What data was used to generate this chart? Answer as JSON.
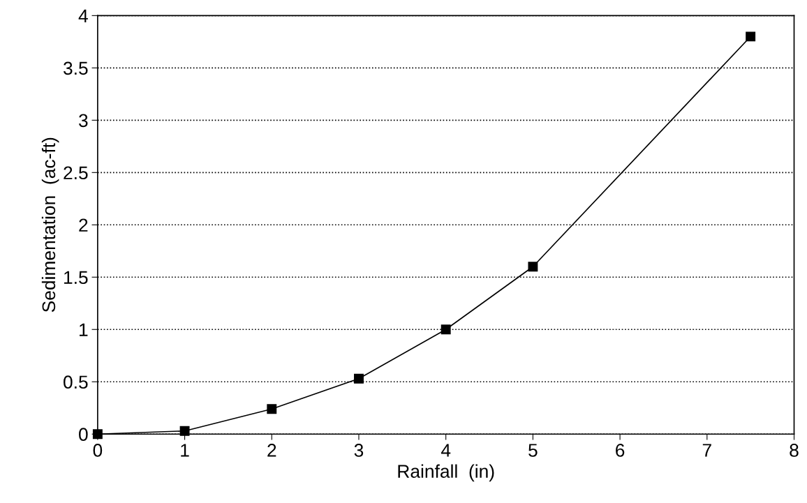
{
  "chart_data": {
    "type": "line",
    "xlabel": "Rainfall  (in)",
    "ylabel": "Sedimentation  (ac-ft)",
    "x": [
      0,
      1,
      2,
      3,
      4,
      5,
      7.5
    ],
    "series": [
      {
        "color": "#000000",
        "values": [
          0,
          0.03,
          0.24,
          0.53,
          1.0,
          1.6,
          3.8
        ]
      }
    ],
    "xlim": [
      0,
      8
    ],
    "xticks": [
      0,
      1,
      2,
      3,
      4,
      5,
      6,
      7,
      8
    ],
    "ylim": [
      0,
      4
    ],
    "yticks": [
      0,
      0.5,
      1,
      1.5,
      2,
      2.5,
      3,
      3.5,
      4
    ],
    "grid": "y",
    "marker": "square",
    "line_style": "solid"
  }
}
